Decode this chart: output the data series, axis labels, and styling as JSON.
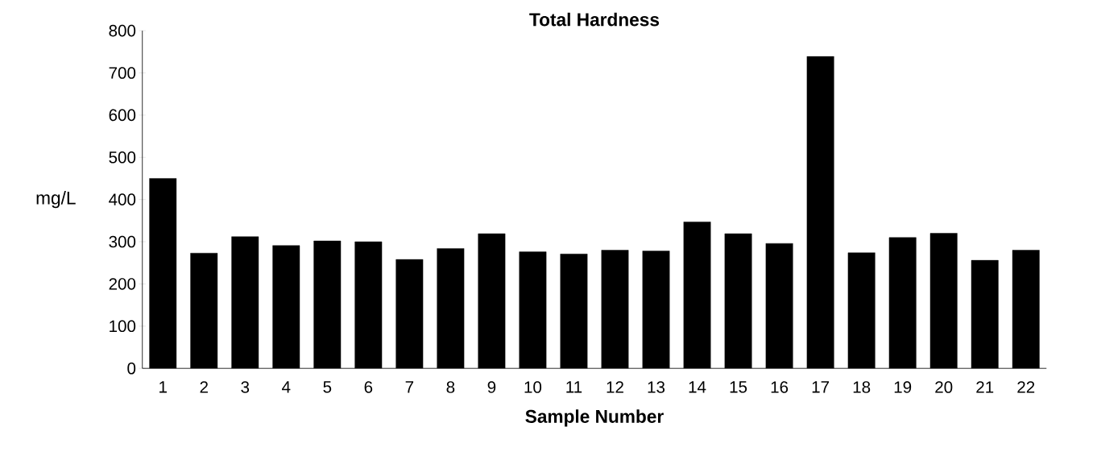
{
  "chart_data": {
    "type": "bar",
    "title": "Total Hardness",
    "xlabel": "Sample Number",
    "ylabel": "mg/L",
    "categories": [
      "1",
      "2",
      "3",
      "4",
      "5",
      "6",
      "7",
      "8",
      "9",
      "10",
      "11",
      "12",
      "13",
      "14",
      "15",
      "16",
      "17",
      "18",
      "19",
      "20",
      "21",
      "22"
    ],
    "values": [
      450,
      273,
      312,
      291,
      302,
      300,
      258,
      284,
      319,
      276,
      271,
      280,
      278,
      347,
      319,
      296,
      739,
      274,
      310,
      320,
      256,
      280
    ],
    "color": "#000000",
    "ylim": [
      0,
      800
    ],
    "yticks": [
      0,
      100,
      200,
      300,
      400,
      500,
      600,
      700,
      800
    ],
    "grid": false
  }
}
